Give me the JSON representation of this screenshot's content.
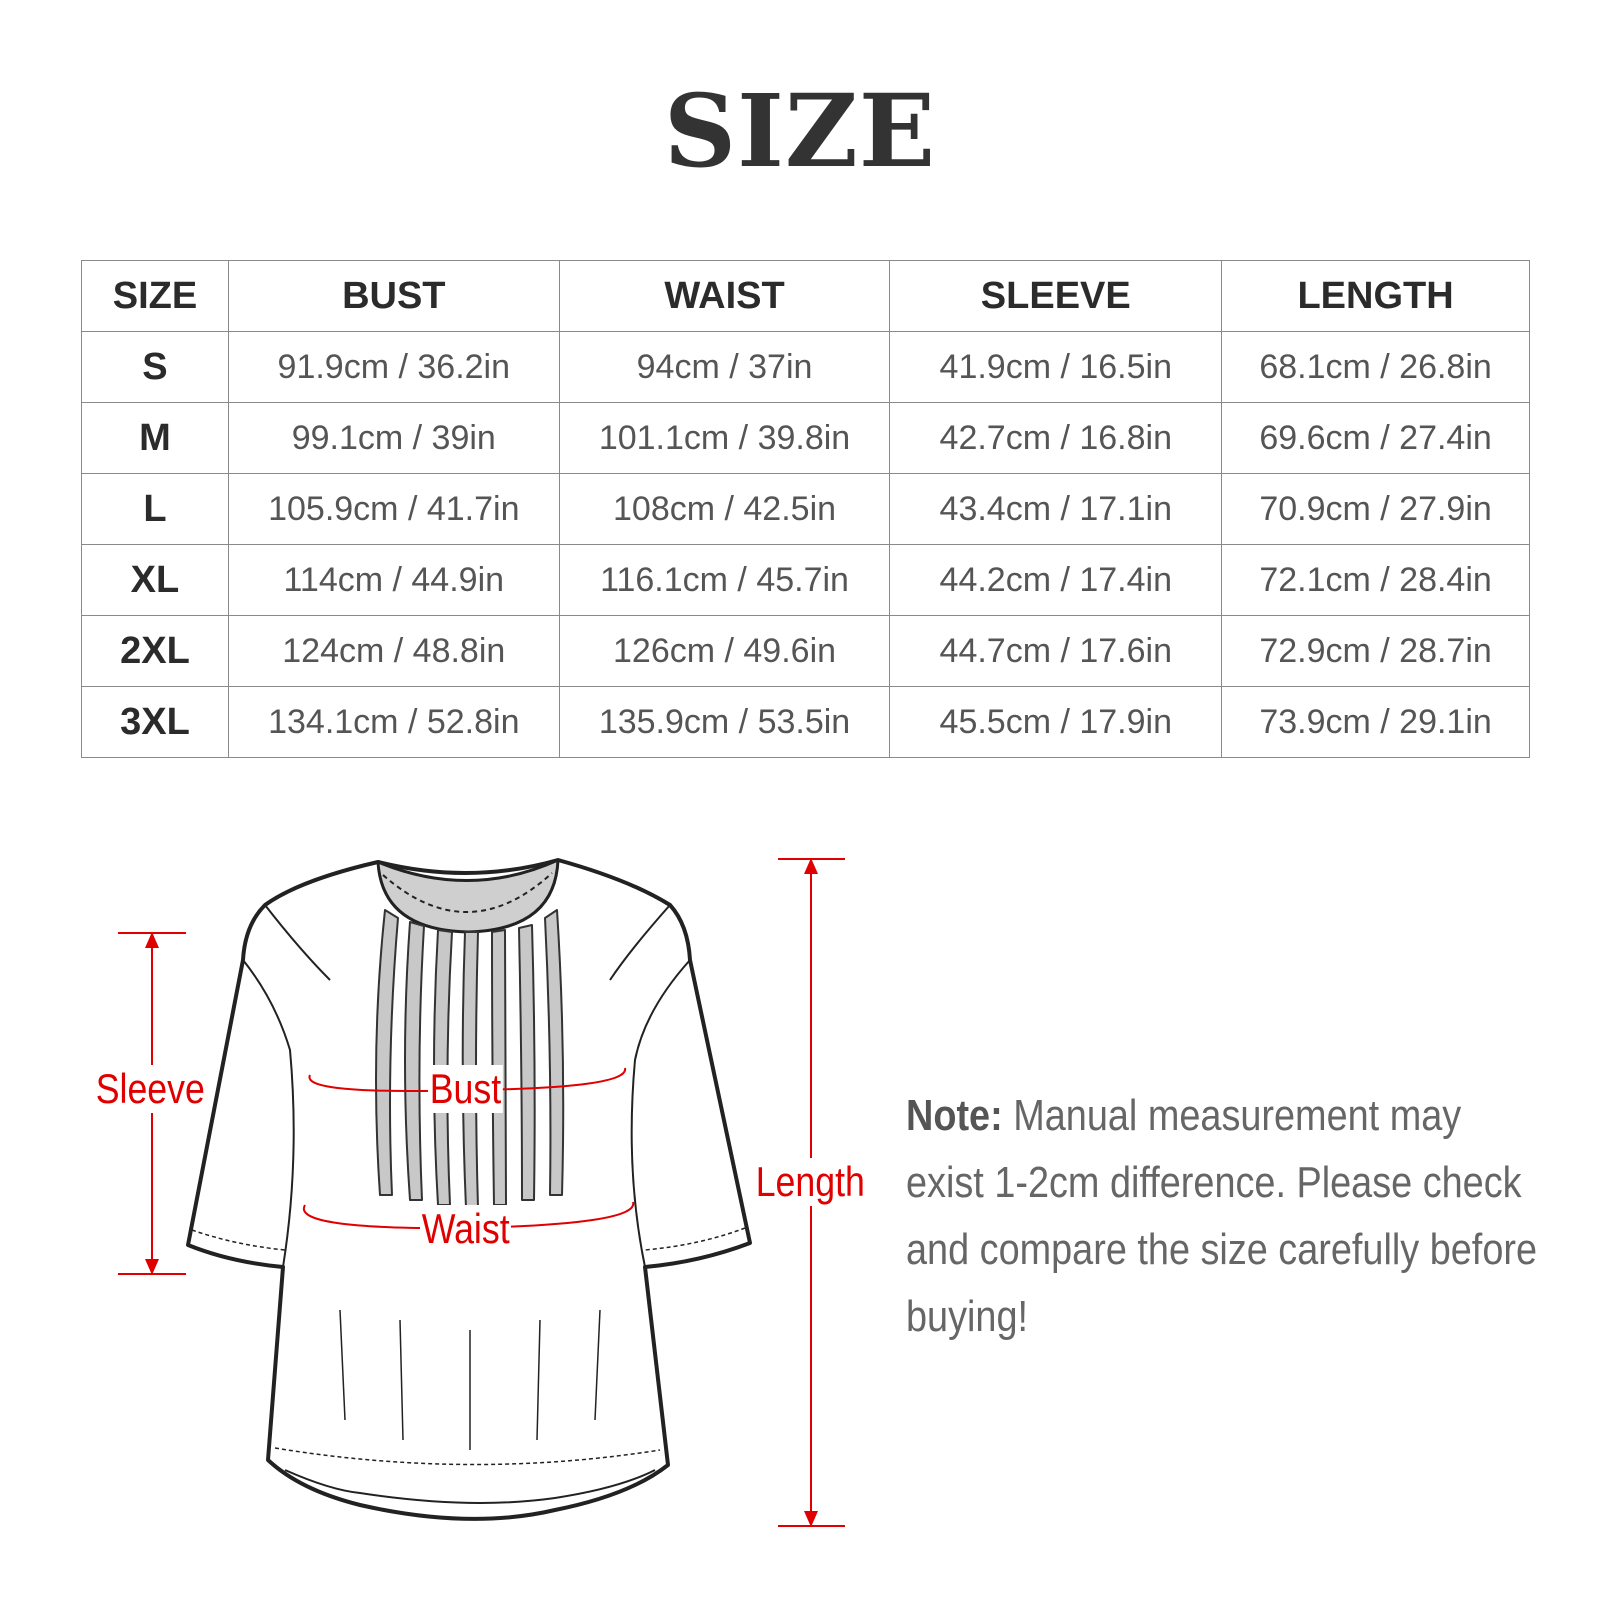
{
  "title": "SIZE",
  "table": {
    "headers": [
      "SIZE",
      "BUST",
      "WAIST",
      "SLEEVE",
      "LENGTH"
    ],
    "rows": [
      [
        "S",
        "91.9cm / 36.2in",
        "94cm / 37in",
        "41.9cm / 16.5in",
        "68.1cm / 26.8in"
      ],
      [
        "M",
        "99.1cm / 39in",
        "101.1cm / 39.8in",
        "42.7cm / 16.8in",
        "69.6cm / 27.4in"
      ],
      [
        "L",
        "105.9cm / 41.7in",
        "108cm / 42.5in",
        "43.4cm / 17.1in",
        "70.9cm / 27.9in"
      ],
      [
        "XL",
        "114cm / 44.9in",
        "116.1cm / 45.7in",
        "44.2cm / 17.4in",
        "72.1cm / 28.4in"
      ],
      [
        "2XL",
        "124cm / 48.8in",
        "126cm / 49.6in",
        "44.7cm / 17.6in",
        "72.9cm / 28.7in"
      ],
      [
        "3XL",
        "134.1cm / 52.8in",
        "135.9cm / 53.5in",
        "45.5cm / 17.9in",
        "73.9cm / 29.1in"
      ]
    ]
  },
  "diagram": {
    "labels": {
      "sleeve": "Sleeve",
      "bust": "Bust",
      "waist": "Waist",
      "length": "Length"
    },
    "measure_color": "#e00000"
  },
  "note": {
    "label": "Note:",
    "text": " Manual measurement may exist 1-2cm difference. Please check and compare the size carefully before buying!"
  }
}
